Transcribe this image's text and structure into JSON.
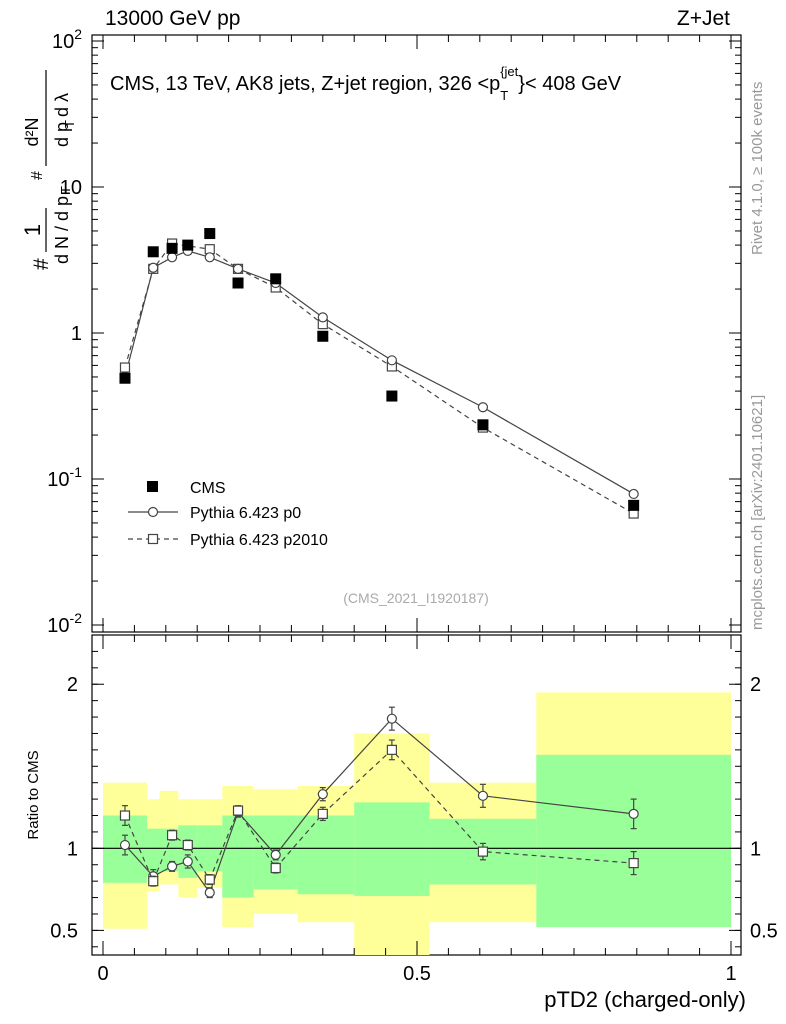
{
  "header": {
    "left": "13000 GeV pp",
    "right": "Z+Jet"
  },
  "side_labels": {
    "rivet": "Rivet 4.1.0, ≥ 100k events",
    "mcplots": "mcplots.cern.ch [arXiv:2401.10621]"
  },
  "chart_data": [
    {
      "type": "scatter",
      "panel": "main",
      "title": "CMS, 13 TeV, AK8 jets, Z+jet region, 326 <p_T^{jet}< 408 GeV",
      "ylabel": "1/(dN/dp_T) d²N/(dp_T dλ)",
      "yscale": "log",
      "ylim": [
        0.01,
        100
      ],
      "xlim": [
        0,
        1
      ],
      "ytick_labels": [
        "10^{-2}",
        "10^{-1}",
        "1",
        "10",
        "10^{2}"
      ],
      "ytick_values": [
        0.01,
        0.1,
        1,
        10,
        100
      ],
      "watermark": "(CMS_2021_I1920187)",
      "x": [
        0.035,
        0.08,
        0.11,
        0.135,
        0.17,
        0.215,
        0.275,
        0.35,
        0.46,
        0.605,
        0.845
      ],
      "series": [
        {
          "name": "CMS",
          "marker": "filled-square",
          "line": "none",
          "values": [
            0.49,
            3.6,
            3.8,
            4.0,
            4.8,
            2.2,
            2.35,
            0.95,
            0.37,
            0.235,
            0.066
          ]
        },
        {
          "name": "Pythia 6.423 p0",
          "marker": "open-circle",
          "line": "solid",
          "values": [
            0.5,
            2.8,
            3.3,
            3.65,
            3.3,
            2.75,
            2.2,
            1.28,
            0.65,
            0.31,
            0.079
          ]
        },
        {
          "name": "Pythia 6.423 p2010",
          "marker": "open-square",
          "line": "dashed",
          "values": [
            0.58,
            2.75,
            4.1,
            3.95,
            3.75,
            2.75,
            2.05,
            1.15,
            0.59,
            0.225,
            0.058
          ]
        }
      ],
      "legend": "bottom-left"
    },
    {
      "type": "scatter",
      "panel": "ratio",
      "ylabel": "Ratio to CMS",
      "xlabel": "pTD2 (charged-only)",
      "ylim": [
        0.35,
        2.3
      ],
      "xlim": [
        0,
        1
      ],
      "xtick_labels": [
        "0",
        "0.5",
        "1"
      ],
      "xtick_values": [
        0,
        0.5,
        1
      ],
      "ytick_labels": [
        "0.5",
        "1",
        "2"
      ],
      "ytick_values": [
        0.5,
        1,
        2
      ],
      "reference_line": 1,
      "bands": {
        "bin_edges": [
          0.0,
          0.07,
          0.09,
          0.12,
          0.15,
          0.19,
          0.24,
          0.31,
          0.4,
          0.52,
          0.69,
          1.0
        ],
        "yellow_lo": [
          0.51,
          0.74,
          0.78,
          0.7,
          0.76,
          0.52,
          0.6,
          0.55,
          0.35,
          0.55,
          0.52
        ],
        "yellow_hi": [
          1.4,
          1.3,
          1.35,
          1.3,
          1.3,
          1.38,
          1.36,
          1.38,
          1.7,
          1.4,
          1.95
        ],
        "green_lo": [
          0.79,
          0.84,
          0.86,
          0.82,
          0.86,
          0.7,
          0.75,
          0.72,
          0.71,
          0.78,
          0.52
        ],
        "green_hi": [
          1.2,
          1.12,
          1.12,
          1.14,
          1.14,
          1.2,
          1.2,
          1.2,
          1.28,
          1.18,
          1.57
        ]
      },
      "x": [
        0.035,
        0.08,
        0.11,
        0.135,
        0.17,
        0.215,
        0.275,
        0.35,
        0.46,
        0.605,
        0.845
      ],
      "series": [
        {
          "name": "Pythia 6.423 p0",
          "marker": "open-circle",
          "line": "solid",
          "values": [
            1.02,
            0.83,
            0.89,
            0.92,
            0.73,
            1.22,
            0.96,
            1.33,
            1.79,
            1.32,
            1.21
          ],
          "errors": [
            0.06,
            0.04,
            0.03,
            0.04,
            0.03,
            0.03,
            0.03,
            0.04,
            0.07,
            0.07,
            0.09
          ]
        },
        {
          "name": "Pythia 6.423 p2010",
          "marker": "open-square",
          "line": "dashed",
          "values": [
            1.2,
            0.8,
            1.08,
            1.02,
            0.81,
            1.23,
            0.88,
            1.21,
            1.6,
            0.98,
            0.91
          ],
          "errors": [
            0.06,
            0.03,
            0.03,
            0.03,
            0.03,
            0.03,
            0.03,
            0.04,
            0.06,
            0.05,
            0.07
          ]
        }
      ]
    }
  ]
}
